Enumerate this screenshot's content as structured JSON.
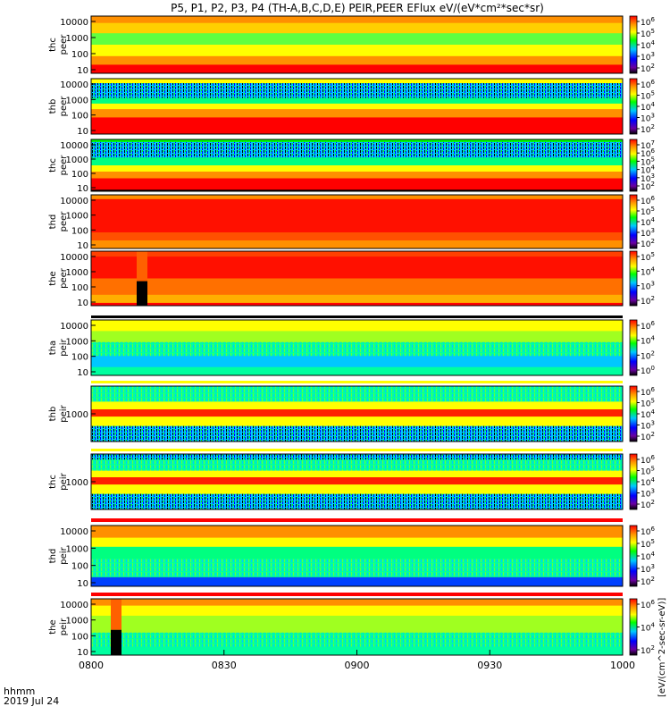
{
  "header": {
    "title": "P5, P1, P2, P3, P4 (TH-A,B,C,D,E) PEIR,PEER EFlux eV/(eV*cm²*sec*sr)"
  },
  "footer": {
    "time_label": "hhmm",
    "date_label": "2019 Jul 24"
  },
  "colorbar": {
    "label_peer": "[eV/(cm^2-sec-sr-eV)]",
    "label_peir": "[eV/(cm^2-sec-sr-eV)]",
    "colors": [
      "#000000",
      "#6a00a0",
      "#0000ff",
      "#00c8ff",
      "#00ff00",
      "#ffff00",
      "#ff9000",
      "#ff0000"
    ]
  },
  "chart_data": {
    "type": "heatmap",
    "x_ticks": [
      "0800",
      "0830",
      "0900",
      "0930",
      "1000"
    ],
    "x_range": [
      "0800",
      "1000"
    ],
    "panels": [
      {
        "name": "thc peer",
        "ylabel": [
          "thc",
          "peer"
        ],
        "yticks": [
          "10000",
          "1000",
          "100",
          "10"
        ],
        "log": true,
        "cbar_ticks": [
          "10^6",
          "10^5",
          "10^4",
          "10^3",
          "10^2"
        ]
      },
      {
        "name": "thb peer",
        "ylabel": [
          "thb",
          "peer"
        ],
        "yticks": [
          "10000",
          "1000",
          "100",
          "10"
        ],
        "log": true,
        "cbar_ticks": [
          "10^6",
          "10^5",
          "10^4",
          "10^3",
          "10^2"
        ]
      },
      {
        "name": "thc peer 2",
        "ylabel": [
          "thc",
          "peer"
        ],
        "yticks": [
          "10000",
          "1000",
          "100",
          "10"
        ],
        "log": true,
        "cbar_ticks": [
          "10^7",
          "10^6",
          "10^5",
          "10^4",
          "10^3",
          "10^2"
        ]
      },
      {
        "name": "thd peer",
        "ylabel": [
          "thd",
          "peer"
        ],
        "yticks": [
          "10000",
          "1000",
          "100",
          "10"
        ],
        "log": true,
        "cbar_ticks": [
          "10^6",
          "10^5",
          "10^4",
          "10^3",
          "10^2"
        ]
      },
      {
        "name": "the peer",
        "ylabel": [
          "the",
          "peer"
        ],
        "yticks": [
          "10000",
          "1000",
          "100",
          "10"
        ],
        "log": true,
        "cbar_ticks": [
          "10^5",
          "10^4",
          "10^3",
          "10^2"
        ]
      },
      {
        "name": "tha peir",
        "ylabel": [
          "tha",
          "peir"
        ],
        "yticks": [
          "10000",
          "1000",
          "100",
          "10"
        ],
        "log": true,
        "cbar_ticks": [
          "10^6",
          "10^4",
          "10^2",
          "10^0"
        ]
      },
      {
        "name": "thb peir",
        "ylabel": [
          "thb",
          "peir"
        ],
        "yticks": [
          "1000"
        ],
        "log": true,
        "cbar_ticks": [
          "10^6",
          "10^5",
          "10^4",
          "10^3",
          "10^2"
        ]
      },
      {
        "name": "thc peir",
        "ylabel": [
          "thc",
          "peir"
        ],
        "yticks": [
          "1000"
        ],
        "log": true,
        "cbar_ticks": [
          "10^6",
          "10^5",
          "10^4",
          "10^3",
          "10^2"
        ]
      },
      {
        "name": "thd peir",
        "ylabel": [
          "thd",
          "peir"
        ],
        "yticks": [
          "10000",
          "1000",
          "100",
          "10"
        ],
        "log": true,
        "cbar_ticks": [
          "10^6",
          "10^5",
          "10^4",
          "10^3",
          "10^2"
        ]
      },
      {
        "name": "the peir",
        "ylabel": [
          "the",
          "peir"
        ],
        "yticks": [
          "10000",
          "1000",
          "100",
          "10"
        ],
        "log": true,
        "cbar_ticks": [
          "10^6",
          "10^4",
          "10^2"
        ]
      }
    ]
  }
}
